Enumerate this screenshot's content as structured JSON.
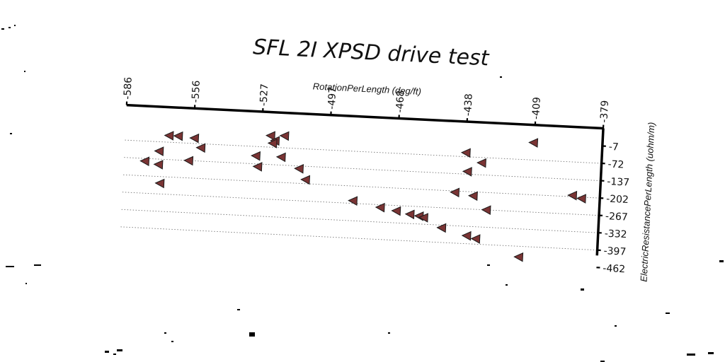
{
  "chart_data": {
    "type": "scatter",
    "title": "SFL 2I XPSD drive test",
    "xlabel": "RotationPerLength (deg/ft)",
    "ylabel": "ElectricResistancePerLength (uohm/m)",
    "x_ticks": [
      "-586",
      "-556",
      "-527",
      "-497",
      "-468",
      "-438",
      "-409",
      "-379"
    ],
    "y_ticks": [
      "-7",
      "-72",
      "-137",
      "-202",
      "-267",
      "-332",
      "-397",
      "-462"
    ],
    "xlim": [
      -586,
      -379
    ],
    "ylim": [
      -462,
      -7
    ],
    "x_axis_position": "top",
    "y_axis_position": "right",
    "grid": "horizontal dotted",
    "marker": "left-pointing triangle",
    "marker_color": "#7a3434",
    "series": [
      {
        "name": "drive test",
        "points": [
          {
            "x": -409,
            "y": -7
          },
          {
            "x": -567,
            "y": -47
          },
          {
            "x": -563,
            "y": -47
          },
          {
            "x": -556,
            "y": -52
          },
          {
            "x": -523,
            "y": -29
          },
          {
            "x": -517,
            "y": -27
          },
          {
            "x": -521,
            "y": -47
          },
          {
            "x": -522,
            "y": -57
          },
          {
            "x": -438,
            "y": -57
          },
          {
            "x": -571,
            "y": -107
          },
          {
            "x": -553,
            "y": -87
          },
          {
            "x": -529,
            "y": -107
          },
          {
            "x": -518,
            "y": -107
          },
          {
            "x": -431,
            "y": -92
          },
          {
            "x": -437,
            "y": -127
          },
          {
            "x": -577,
            "y": -147
          },
          {
            "x": -571,
            "y": -157
          },
          {
            "x": -558,
            "y": -137
          },
          {
            "x": -528,
            "y": -147
          },
          {
            "x": -510,
            "y": -147
          },
          {
            "x": -507,
            "y": -187
          },
          {
            "x": -442,
            "y": -207
          },
          {
            "x": -434,
            "y": -217
          },
          {
            "x": -391,
            "y": -197
          },
          {
            "x": -387,
            "y": -207
          },
          {
            "x": -570,
            "y": -227
          },
          {
            "x": -486,
            "y": -257
          },
          {
            "x": -474,
            "y": -277
          },
          {
            "x": -467,
            "y": -287
          },
          {
            "x": -461,
            "y": -297
          },
          {
            "x": -457,
            "y": -302
          },
          {
            "x": -455,
            "y": -307
          },
          {
            "x": -428,
            "y": -267
          },
          {
            "x": -447,
            "y": -342
          },
          {
            "x": -436,
            "y": -367
          },
          {
            "x": -432,
            "y": -377
          },
          {
            "x": -413,
            "y": -437
          }
        ]
      }
    ]
  }
}
